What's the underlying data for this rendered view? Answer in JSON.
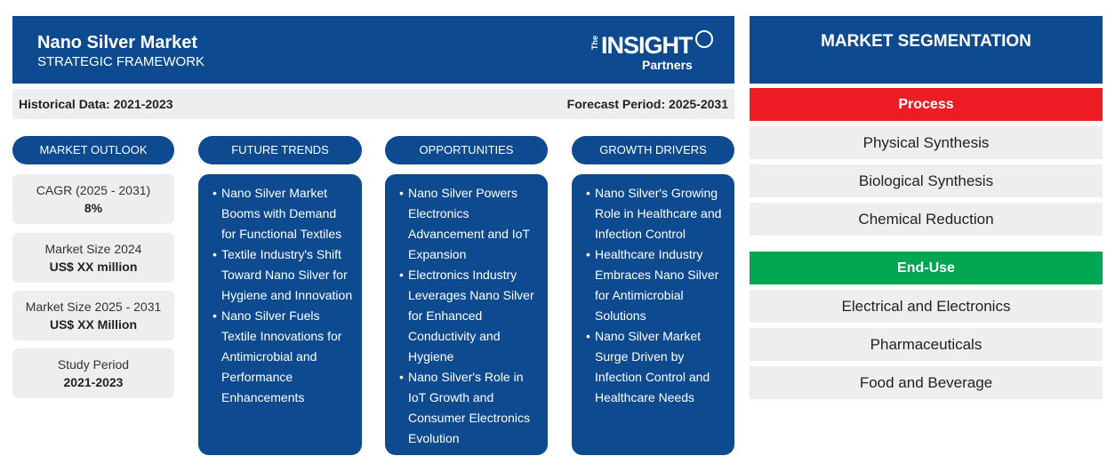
{
  "header": {
    "title": "Nano Silver Market",
    "subtitle": "STRATEGIC FRAMEWORK",
    "logo": {
      "the": "The",
      "insight": "INSIGHT",
      "partners": "Partners"
    }
  },
  "infobar": {
    "historical": "Historical Data: 2021-2023",
    "forecast": "Forecast Period: 2025-2031"
  },
  "market_outlook": {
    "heading": "MARKET OUTLOOK",
    "stats": [
      {
        "label": "CAGR (2025 - 2031)",
        "value": "8%"
      },
      {
        "label": "Market Size 2024",
        "value": "US$ XX million"
      },
      {
        "label": "Market Size 2025 - 2031",
        "value": "US$ XX Million"
      },
      {
        "label": "Study Period",
        "value": "2021-2023"
      }
    ]
  },
  "future_trends": {
    "heading": "FUTURE TRENDS",
    "items": [
      "Nano Silver Market Booms with Demand for Functional Textiles",
      "Textile Industry's Shift Toward Nano Silver for Hygiene and Innovation",
      "Nano Silver Fuels Textile Innovations for Antimicrobial and Performance Enhancements"
    ]
  },
  "opportunities": {
    "heading": "OPPORTUNITIES",
    "items": [
      "Nano Silver Powers Electronics Advancement and IoT Expansion",
      "Electronics Industry Leverages Nano Silver for Enhanced Conductivity and Hygiene",
      "Nano Silver's Role in IoT Growth and Consumer Electronics Evolution"
    ]
  },
  "growth_drivers": {
    "heading": "GROWTH DRIVERS",
    "items": [
      "Nano Silver's Growing Role in Healthcare and Infection Control",
      "Healthcare Industry Embraces Nano Silver for Antimicrobial Solutions",
      "Nano Silver Market Surge Driven by Infection Control and Healthcare Needs"
    ]
  },
  "segmentation": {
    "heading": "MARKET SEGMENTATION",
    "groups": [
      {
        "name": "Process",
        "color": "#ee1c25",
        "items": [
          "Physical Synthesis",
          "Biological Synthesis",
          "Chemical Reduction"
        ]
      },
      {
        "name": "End-Use",
        "color": "#00a651",
        "items": [
          "Electrical and Electronics",
          "Pharmaceuticals",
          "Food and Beverage"
        ]
      }
    ]
  }
}
